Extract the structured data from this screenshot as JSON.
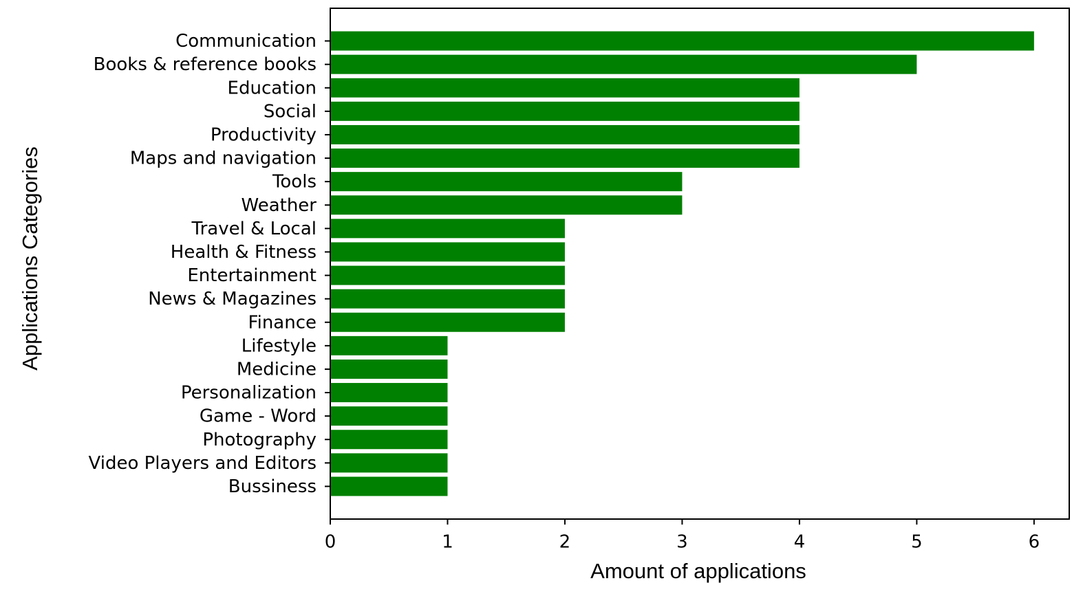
{
  "chart_data": {
    "type": "barh",
    "x_label": "Amount of applications",
    "y_label": "Applications Categories",
    "categories": [
      "Communication",
      "Books & reference books",
      "Education",
      "Social",
      "Productivity",
      "Maps and navigation",
      "Tools",
      "Weather",
      "Travel & Local",
      "Health & Fitness",
      "Entertainment",
      "News & Magazines",
      "Finance",
      "Lifestyle",
      "Medicine",
      "Personalization",
      "Game - Word",
      "Photography",
      "Video Players and Editors",
      "Bussiness"
    ],
    "values": [
      6,
      5,
      4,
      4,
      4,
      4,
      3,
      3,
      2,
      2,
      2,
      2,
      2,
      1,
      1,
      1,
      1,
      1,
      1,
      1
    ],
    "color": "#008000",
    "xlim": [
      0,
      6.3
    ],
    "xticks": [
      0,
      1,
      2,
      3,
      4,
      5,
      6
    ]
  }
}
